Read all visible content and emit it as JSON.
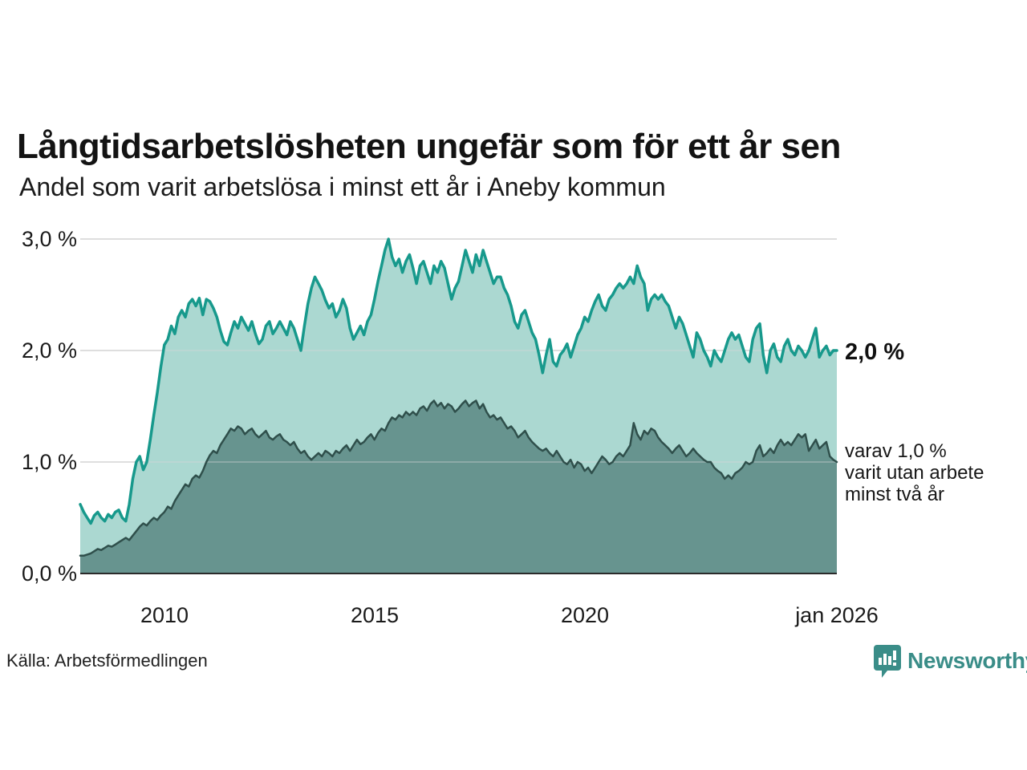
{
  "header": {
    "title": "Långtidsarbetslösheten ungefär som för ett år sen",
    "subtitle": "Andel som varit arbetslösa i minst ett år i Aneby kommun"
  },
  "chart_data": {
    "type": "area",
    "title": "Långtidsarbetslösheten ungefär som för ett år sen",
    "subtitle": "Andel som varit arbetslösa i minst ett år i Aneby kommun",
    "unit": "%",
    "frequency": "monthly",
    "x_start": "2008-01",
    "x_end": "2026-01",
    "ylim": [
      0,
      3.2
    ],
    "grid": "horizontal",
    "legend_position": "none",
    "ytick_values": [
      0,
      1,
      2,
      3
    ],
    "ytick_labels": [
      "0,0 %",
      "1,0 %",
      "2,0 %",
      "3,0 %"
    ],
    "xticks": [
      {
        "label": "2010",
        "month_index": 24
      },
      {
        "label": "2015",
        "month_index": 84
      },
      {
        "label": "2020",
        "month_index": 144
      },
      {
        "label": "jan 2026",
        "month_index": 216
      }
    ],
    "series": [
      {
        "name": "Andel som varit arbetslösa i minst ett år",
        "line_color": "#17998c",
        "fill_color": "#abd8d1",
        "line_width": 3.5,
        "values": [
          0.62,
          0.55,
          0.5,
          0.45,
          0.52,
          0.55,
          0.5,
          0.47,
          0.53,
          0.5,
          0.55,
          0.57,
          0.5,
          0.47,
          0.62,
          0.85,
          1.0,
          1.05,
          0.93,
          1.0,
          1.2,
          1.42,
          1.62,
          1.85,
          2.05,
          2.1,
          2.22,
          2.15,
          2.3,
          2.36,
          2.3,
          2.42,
          2.46,
          2.4,
          2.47,
          2.32,
          2.46,
          2.44,
          2.38,
          2.3,
          2.18,
          2.08,
          2.05,
          2.16,
          2.26,
          2.2,
          2.3,
          2.24,
          2.18,
          2.26,
          2.15,
          2.06,
          2.1,
          2.22,
          2.26,
          2.15,
          2.2,
          2.26,
          2.2,
          2.14,
          2.26,
          2.2,
          2.1,
          2.0,
          2.22,
          2.42,
          2.56,
          2.66,
          2.6,
          2.54,
          2.45,
          2.38,
          2.42,
          2.3,
          2.36,
          2.46,
          2.38,
          2.2,
          2.1,
          2.16,
          2.22,
          2.14,
          2.26,
          2.32,
          2.46,
          2.62,
          2.76,
          2.9,
          3.0,
          2.84,
          2.76,
          2.82,
          2.7,
          2.8,
          2.86,
          2.74,
          2.6,
          2.76,
          2.8,
          2.7,
          2.6,
          2.76,
          2.7,
          2.8,
          2.74,
          2.6,
          2.46,
          2.56,
          2.62,
          2.76,
          2.9,
          2.8,
          2.7,
          2.86,
          2.76,
          2.9,
          2.8,
          2.7,
          2.6,
          2.66,
          2.66,
          2.56,
          2.5,
          2.4,
          2.26,
          2.2,
          2.32,
          2.36,
          2.26,
          2.16,
          2.1,
          1.96,
          1.8,
          1.96,
          2.1,
          1.9,
          1.86,
          1.96,
          2.0,
          2.06,
          1.94,
          2.04,
          2.14,
          2.2,
          2.3,
          2.26,
          2.36,
          2.44,
          2.5,
          2.4,
          2.36,
          2.46,
          2.5,
          2.56,
          2.6,
          2.56,
          2.6,
          2.66,
          2.6,
          2.76,
          2.66,
          2.6,
          2.36,
          2.46,
          2.5,
          2.46,
          2.5,
          2.44,
          2.4,
          2.3,
          2.2,
          2.3,
          2.24,
          2.14,
          2.04,
          1.94,
          2.16,
          2.1,
          2.0,
          1.94,
          1.86,
          2.0,
          1.94,
          1.9,
          2.0,
          2.1,
          2.16,
          2.1,
          2.14,
          2.04,
          1.94,
          1.9,
          2.1,
          2.2,
          2.24,
          1.96,
          1.8,
          2.0,
          2.06,
          1.94,
          1.9,
          2.04,
          2.1,
          2.0,
          1.96,
          2.04,
          2.0,
          1.94,
          2.0,
          2.1,
          2.2,
          1.94,
          2.0,
          2.04,
          1.96,
          2.0,
          2.0
        ]
      },
      {
        "name": "Varav utan arbete minst två år",
        "line_color": "#2f4f4b",
        "fill_color": "#67948f",
        "line_width": 2.5,
        "values": [
          0.16,
          0.16,
          0.17,
          0.18,
          0.2,
          0.22,
          0.21,
          0.23,
          0.25,
          0.24,
          0.26,
          0.28,
          0.3,
          0.32,
          0.3,
          0.34,
          0.38,
          0.42,
          0.45,
          0.43,
          0.47,
          0.5,
          0.48,
          0.52,
          0.55,
          0.6,
          0.58,
          0.65,
          0.7,
          0.75,
          0.8,
          0.78,
          0.85,
          0.88,
          0.86,
          0.92,
          1.0,
          1.06,
          1.1,
          1.08,
          1.15,
          1.2,
          1.25,
          1.3,
          1.28,
          1.32,
          1.3,
          1.25,
          1.28,
          1.3,
          1.25,
          1.22,
          1.25,
          1.28,
          1.22,
          1.2,
          1.23,
          1.25,
          1.2,
          1.18,
          1.15,
          1.18,
          1.12,
          1.08,
          1.1,
          1.05,
          1.02,
          1.05,
          1.08,
          1.05,
          1.1,
          1.08,
          1.05,
          1.1,
          1.08,
          1.12,
          1.15,
          1.1,
          1.15,
          1.2,
          1.16,
          1.18,
          1.22,
          1.25,
          1.2,
          1.26,
          1.3,
          1.28,
          1.35,
          1.4,
          1.38,
          1.42,
          1.4,
          1.45,
          1.42,
          1.45,
          1.42,
          1.48,
          1.5,
          1.46,
          1.52,
          1.55,
          1.5,
          1.53,
          1.48,
          1.52,
          1.5,
          1.45,
          1.48,
          1.52,
          1.55,
          1.5,
          1.53,
          1.55,
          1.48,
          1.52,
          1.45,
          1.4,
          1.42,
          1.38,
          1.4,
          1.35,
          1.3,
          1.32,
          1.28,
          1.22,
          1.25,
          1.28,
          1.22,
          1.18,
          1.15,
          1.12,
          1.1,
          1.12,
          1.08,
          1.05,
          1.1,
          1.05,
          1.0,
          0.98,
          1.02,
          0.95,
          1.0,
          0.98,
          0.92,
          0.95,
          0.9,
          0.95,
          1.0,
          1.05,
          1.02,
          0.98,
          1.0,
          1.05,
          1.08,
          1.05,
          1.1,
          1.15,
          1.35,
          1.25,
          1.2,
          1.28,
          1.25,
          1.3,
          1.28,
          1.22,
          1.18,
          1.15,
          1.12,
          1.08,
          1.12,
          1.15,
          1.1,
          1.05,
          1.08,
          1.12,
          1.08,
          1.05,
          1.02,
          1.0,
          1.0,
          0.95,
          0.92,
          0.9,
          0.85,
          0.88,
          0.85,
          0.9,
          0.92,
          0.95,
          1.0,
          0.98,
          1.0,
          1.1,
          1.15,
          1.05,
          1.08,
          1.12,
          1.08,
          1.15,
          1.2,
          1.15,
          1.18,
          1.15,
          1.2,
          1.25,
          1.22,
          1.25,
          1.1,
          1.15,
          1.2,
          1.12,
          1.15,
          1.18,
          1.05,
          1.02,
          1.0
        ]
      }
    ],
    "annotations": {
      "latest_value_label": "2,0 %",
      "secondary_lines": [
        "varav 1,0 %",
        "varit utan arbete",
        "minst två år"
      ]
    },
    "colors": {
      "gridline": "#d8d8d8",
      "axis_line": "#2b2b2b",
      "tick_text": "#1a1a1a"
    }
  },
  "footer": {
    "source": "Källa: Arbetsförmedlingen",
    "brand_name": "Newsworthy",
    "brand_color": "#3a8d88"
  }
}
